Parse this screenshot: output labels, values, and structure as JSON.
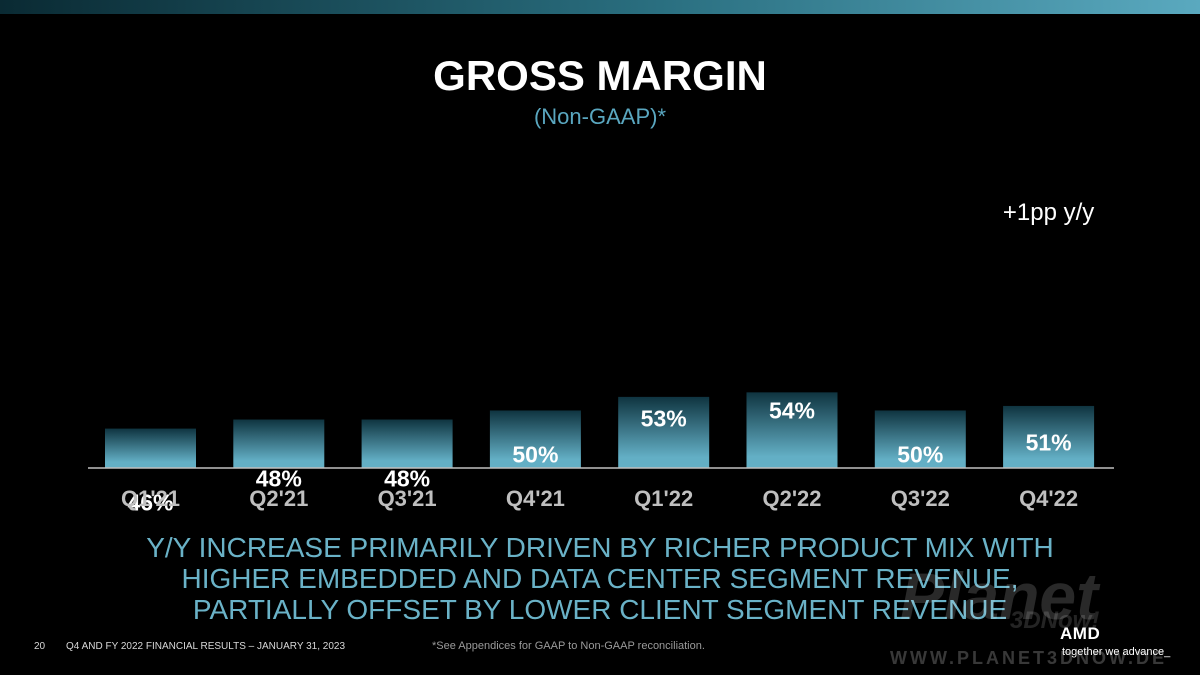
{
  "slide": {
    "title": "GROSS MARGIN",
    "subtitle": "(Non-GAAP)*",
    "headline_lines": [
      "Y/Y INCREASE PRIMARILY DRIVEN BY RICHER PRODUCT MIX WITH",
      "HIGHER EMBEDDED AND DATA CENTER SEGMENT REVENUE,",
      "PARTIALLY OFFSET BY LOWER CLIENT SEGMENT REVENUE"
    ],
    "page_number": "20",
    "footer_title": "Q4 AND FY 2022 FINANCIAL RESULTS – JANUARY 31, 2023",
    "footnote": "*See Appendices for GAAP to Non-GAAP reconciliation.",
    "logo_text": "AMD",
    "logo_tagline": "together we advance_",
    "watermark": {
      "name": "Planet",
      "sub": "3DNow!",
      "url": "WWW.PLANET3DNOW.DE"
    }
  },
  "colors": {
    "background": "#000000",
    "bar_top": "#0f3440",
    "bar_bottom": "#63afc5",
    "headline": "#6ab2c7",
    "subtitle": "#5aa7c0"
  },
  "chart_data": {
    "type": "bar",
    "categories": [
      "Q1'21",
      "Q2'21",
      "Q3'21",
      "Q4'21",
      "Q1'22",
      "Q2'22",
      "Q3'22",
      "Q4'22"
    ],
    "values": [
      46,
      48,
      48,
      50,
      53,
      54,
      50,
      51
    ],
    "data_labels": [
      "46%",
      "48%",
      "48%",
      "50%",
      "53%",
      "54%",
      "50%",
      "51%"
    ],
    "unit": "%",
    "annotation": {
      "category": "Q4'22",
      "text": "+1pp y/y"
    }
  }
}
